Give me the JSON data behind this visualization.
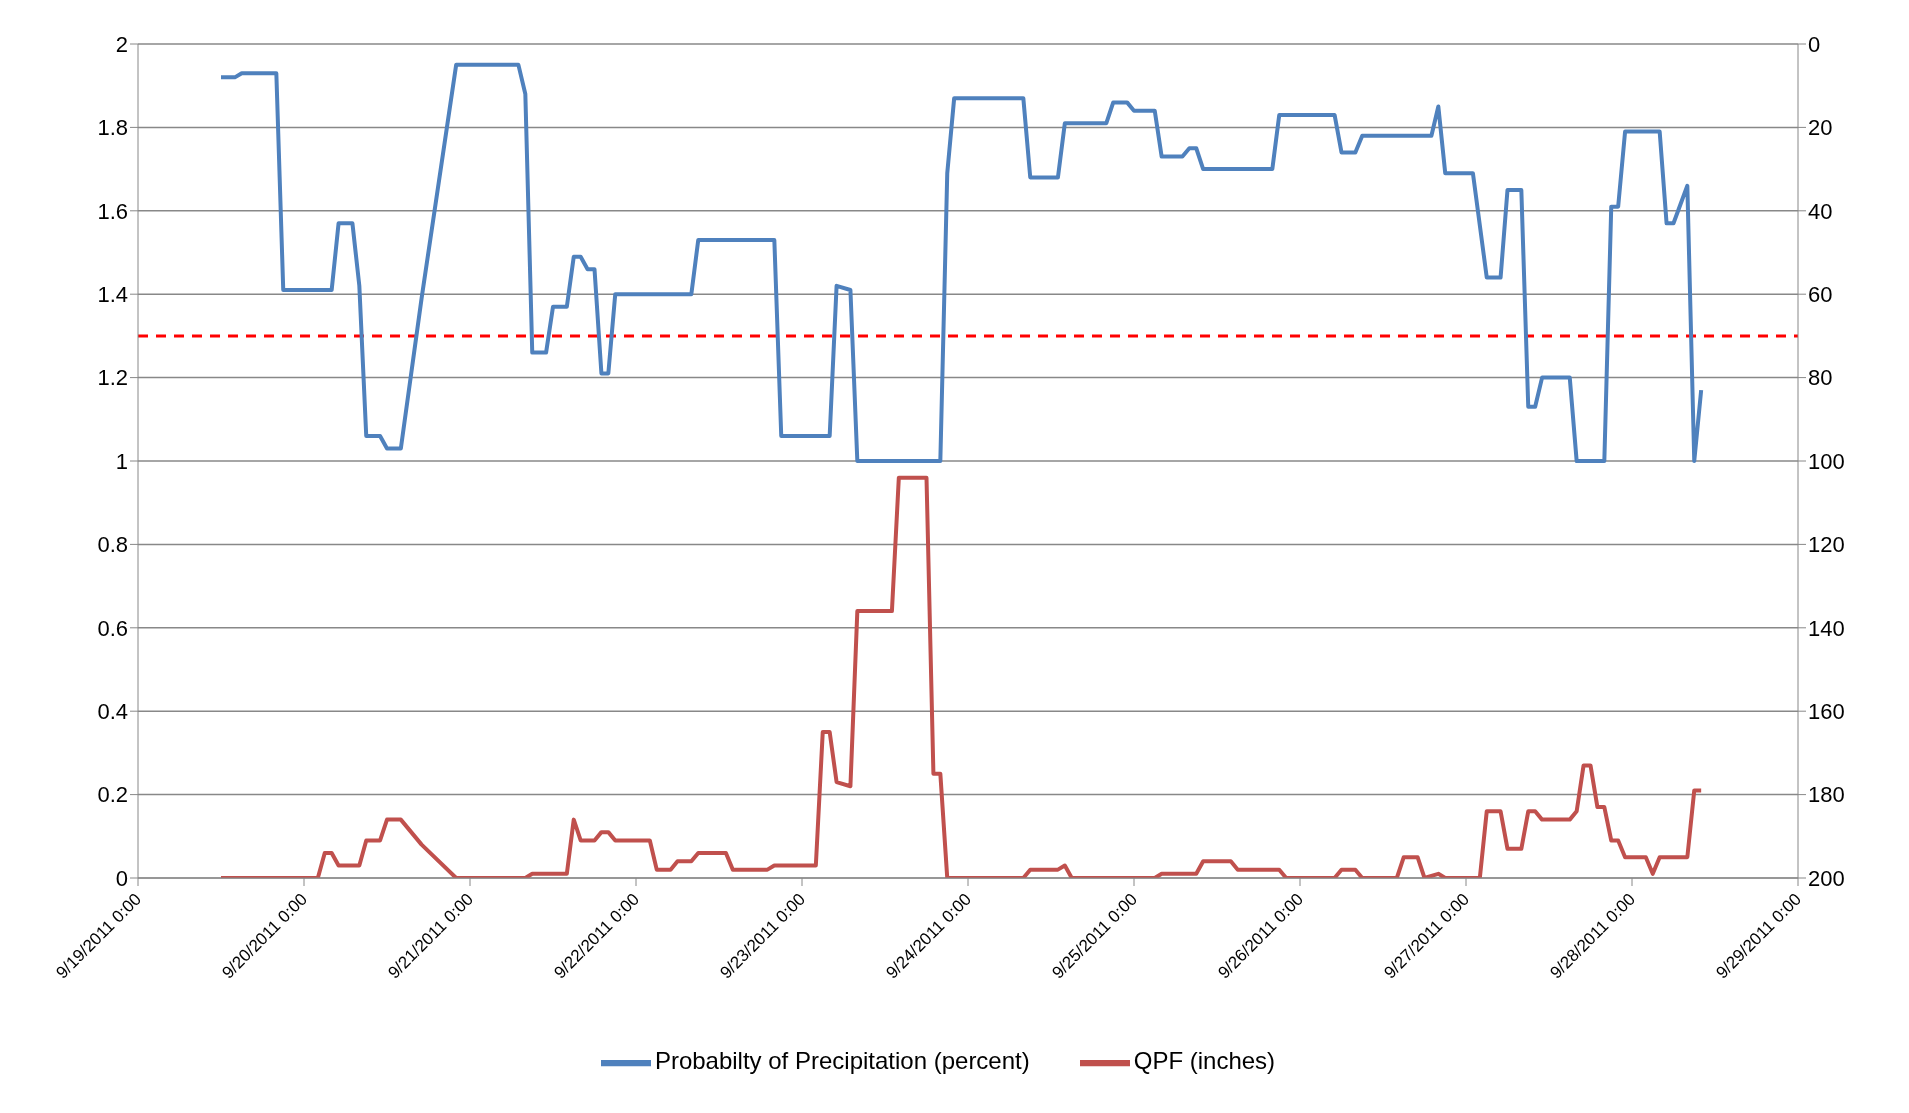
{
  "chart_data": {
    "type": "line",
    "legend": "bottom",
    "grid": "y",
    "marker": "none",
    "line_style": "solid",
    "xlim": [
      "2011-09-19",
      "2011-09-29"
    ],
    "xticks": [
      {
        "value": "2011-09-19",
        "label": "9/19/2011 0:00"
      },
      {
        "value": "2011-09-20",
        "label": "9/20/2011 0:00"
      },
      {
        "value": "2011-09-21",
        "label": "9/21/2011 0:00"
      },
      {
        "value": "2011-09-22",
        "label": "9/22/2011 0:00"
      },
      {
        "value": "2011-09-23",
        "label": "9/23/2011 0:00"
      },
      {
        "value": "2011-09-24",
        "label": "9/24/2011 0:00"
      },
      {
        "value": "2011-09-25",
        "label": "9/25/2011 0:00"
      },
      {
        "value": "2011-09-26",
        "label": "9/26/2011 0:00"
      },
      {
        "value": "2011-09-27",
        "label": "9/27/2011 0:00"
      },
      {
        "value": "2011-09-28",
        "label": "9/28/2011 0:00"
      },
      {
        "value": "2011-09-29",
        "label": "9/29/2011 0:00"
      }
    ],
    "ylim": [
      0,
      2
    ],
    "yticks": [
      0,
      0.2,
      0.4,
      0.6,
      0.8,
      1,
      1.2,
      1.4,
      1.6,
      1.8,
      2
    ],
    "y2lim": [
      200,
      0
    ],
    "y2ticks": [
      0,
      20,
      40,
      60,
      80,
      100,
      120,
      140,
      160,
      180,
      200
    ],
    "ref_lines": [
      {
        "axis": "y",
        "value": 1.3,
        "color": "#ff0000",
        "line_style": "dashed"
      }
    ],
    "series": [
      {
        "name": "QPF (inches)",
        "color": "#c0504d",
        "x": [
          "2011-09-19T12:00",
          "2011-09-20T02:00",
          "2011-09-20T03:00",
          "2011-09-20T04:00",
          "2011-09-20T05:00",
          "2011-09-20T08:00",
          "2011-09-20T09:00",
          "2011-09-20T11:00",
          "2011-09-20T12:00",
          "2011-09-20T14:00",
          "2011-09-20T17:00",
          "2011-09-20T22:00",
          "2011-09-21T08:00",
          "2011-09-21T09:00",
          "2011-09-21T14:00",
          "2011-09-21T15:00",
          "2011-09-21T16:00",
          "2011-09-21T18:00",
          "2011-09-21T19:00",
          "2011-09-21T20:00",
          "2011-09-21T21:00",
          "2011-09-22T02:00",
          "2011-09-22T03:00",
          "2011-09-22T05:00",
          "2011-09-22T06:00",
          "2011-09-22T08:00",
          "2011-09-22T09:00",
          "2011-09-22T13:00",
          "2011-09-22T14:00",
          "2011-09-22T19:00",
          "2011-09-22T20:00",
          "2011-09-23T02:00",
          "2011-09-23T03:00",
          "2011-09-23T04:00",
          "2011-09-23T05:00",
          "2011-09-23T07:00",
          "2011-09-23T08:00",
          "2011-09-23T13:00",
          "2011-09-23T14:00",
          "2011-09-23T18:00",
          "2011-09-23T19:00",
          "2011-09-23T20:00",
          "2011-09-23T21:00",
          "2011-09-24T08:00",
          "2011-09-24T09:00",
          "2011-09-24T13:00",
          "2011-09-24T14:00",
          "2011-09-24T15:00",
          "2011-09-25T03:00",
          "2011-09-25T04:00",
          "2011-09-25T09:00",
          "2011-09-25T10:00",
          "2011-09-25T14:00",
          "2011-09-25T15:00",
          "2011-09-25T21:00",
          "2011-09-25T22:00",
          "2011-09-26T05:00",
          "2011-09-26T06:00",
          "2011-09-26T08:00",
          "2011-09-26T09:00",
          "2011-09-26T14:00",
          "2011-09-26T15:00",
          "2011-09-26T17:00",
          "2011-09-26T18:00",
          "2011-09-26T20:00",
          "2011-09-26T21:00",
          "2011-09-27T02:00",
          "2011-09-27T03:00",
          "2011-09-27T05:00",
          "2011-09-27T06:00",
          "2011-09-27T08:00",
          "2011-09-27T09:00",
          "2011-09-27T10:00",
          "2011-09-27T11:00",
          "2011-09-27T15:00",
          "2011-09-27T16:00",
          "2011-09-27T17:00",
          "2011-09-27T18:00",
          "2011-09-27T19:00",
          "2011-09-27T20:00",
          "2011-09-27T21:00",
          "2011-09-27T22:00",
          "2011-09-27T23:00",
          "2011-09-28T02:00",
          "2011-09-28T03:00",
          "2011-09-28T04:00",
          "2011-09-28T08:00",
          "2011-09-28T09:00",
          "2011-09-28T10:00"
        ],
        "values": [
          0,
          0,
          0.06,
          0.06,
          0.03,
          0.03,
          0.09,
          0.09,
          0.14,
          0.14,
          0.08,
          0,
          0,
          0.01,
          0.01,
          0.14,
          0.09,
          0.09,
          0.11,
          0.11,
          0.09,
          0.09,
          0.02,
          0.02,
          0.04,
          0.04,
          0.06,
          0.06,
          0.02,
          0.02,
          0.03,
          0.03,
          0.35,
          0.35,
          0.23,
          0.22,
          0.64,
          0.64,
          0.96,
          0.96,
          0.25,
          0.25,
          0,
          0,
          0.02,
          0.02,
          0.03,
          0,
          0,
          0.01,
          0.01,
          0.04,
          0.04,
          0.02,
          0.02,
          0,
          0,
          0.02,
          0.02,
          0,
          0,
          0.05,
          0.05,
          0,
          0.01,
          0,
          0,
          0.16,
          0.16,
          0.07,
          0.07,
          0.16,
          0.16,
          0.14,
          0.14,
          0.16,
          0.27,
          0.27,
          0.17,
          0.17,
          0.09,
          0.09,
          0.05,
          0.05,
          0.01,
          0.05,
          0.05,
          0.21,
          0.21
        ]
      },
      {
        "name": "Probabilty of Precipitation (percent)",
        "color": "#4f81bd",
        "axis": "y2",
        "x": [
          "2011-09-19T12:00",
          "2011-09-19T14:00",
          "2011-09-19T15:00",
          "2011-09-19T20:00",
          "2011-09-19T21:00",
          "2011-09-20T04:00",
          "2011-09-20T05:00",
          "2011-09-20T07:00",
          "2011-09-20T08:00",
          "2011-09-20T09:00",
          "2011-09-20T11:00",
          "2011-09-20T12:00",
          "2011-09-20T14:00",
          "2011-09-20T17:00",
          "2011-09-20T22:00",
          "2011-09-21T07:00",
          "2011-09-21T08:00",
          "2011-09-21T09:00",
          "2011-09-21T11:00",
          "2011-09-21T12:00",
          "2011-09-21T14:00",
          "2011-09-21T15:00",
          "2011-09-21T16:00",
          "2011-09-21T17:00",
          "2011-09-21T18:00",
          "2011-09-21T19:00",
          "2011-09-21T20:00",
          "2011-09-21T21:00",
          "2011-09-22T08:00",
          "2011-09-22T09:00",
          "2011-09-22T20:00",
          "2011-09-22T21:00",
          "2011-09-23T04:00",
          "2011-09-23T05:00",
          "2011-09-23T07:00",
          "2011-09-23T08:00",
          "2011-09-23T20:00",
          "2011-09-23T21:00",
          "2011-09-23T22:00",
          "2011-09-24T08:00",
          "2011-09-24T09:00",
          "2011-09-24T13:00",
          "2011-09-24T14:00",
          "2011-09-24T20:00",
          "2011-09-24T21:00",
          "2011-09-24T23:00",
          "2011-09-25T00:00",
          "2011-09-25T03:00",
          "2011-09-25T04:00",
          "2011-09-25T07:00",
          "2011-09-25T08:00",
          "2011-09-25T09:00",
          "2011-09-25T10:00",
          "2011-09-25T20:00",
          "2011-09-25T21:00",
          "2011-09-26T05:00",
          "2011-09-26T06:00",
          "2011-09-26T08:00",
          "2011-09-26T09:00",
          "2011-09-26T19:00",
          "2011-09-26T20:00",
          "2011-09-26T21:00",
          "2011-09-27T01:00",
          "2011-09-27T03:00",
          "2011-09-27T05:00",
          "2011-09-27T06:00",
          "2011-09-27T08:00",
          "2011-09-27T09:00",
          "2011-09-27T10:00",
          "2011-09-27T11:00",
          "2011-09-27T15:00",
          "2011-09-27T16:00",
          "2011-09-27T20:00",
          "2011-09-27T21:00",
          "2011-09-27T22:00",
          "2011-09-27T23:00",
          "2011-09-28T04:00",
          "2011-09-28T05:00",
          "2011-09-28T06:00",
          "2011-09-28T08:00",
          "2011-09-28T09:00",
          "2011-09-28T10:00"
        ],
        "values": [
          8,
          8,
          7,
          7,
          59,
          59,
          43,
          43,
          58,
          94,
          94,
          97,
          97,
          61,
          5,
          5,
          12,
          74,
          74,
          63,
          63,
          51,
          51,
          54,
          54,
          79,
          79,
          60,
          60,
          47,
          47,
          94,
          94,
          58,
          59,
          100,
          100,
          31,
          13,
          13,
          32,
          32,
          19,
          19,
          14,
          14,
          16,
          16,
          27,
          27,
          25,
          25,
          30,
          30,
          17,
          17,
          26,
          26,
          22,
          22,
          15,
          31,
          31,
          56,
          56,
          35,
          35,
          87,
          87,
          80,
          80,
          100,
          100,
          39,
          39,
          21,
          21,
          43,
          43,
          34,
          100,
          83
        ]
      }
    ]
  }
}
